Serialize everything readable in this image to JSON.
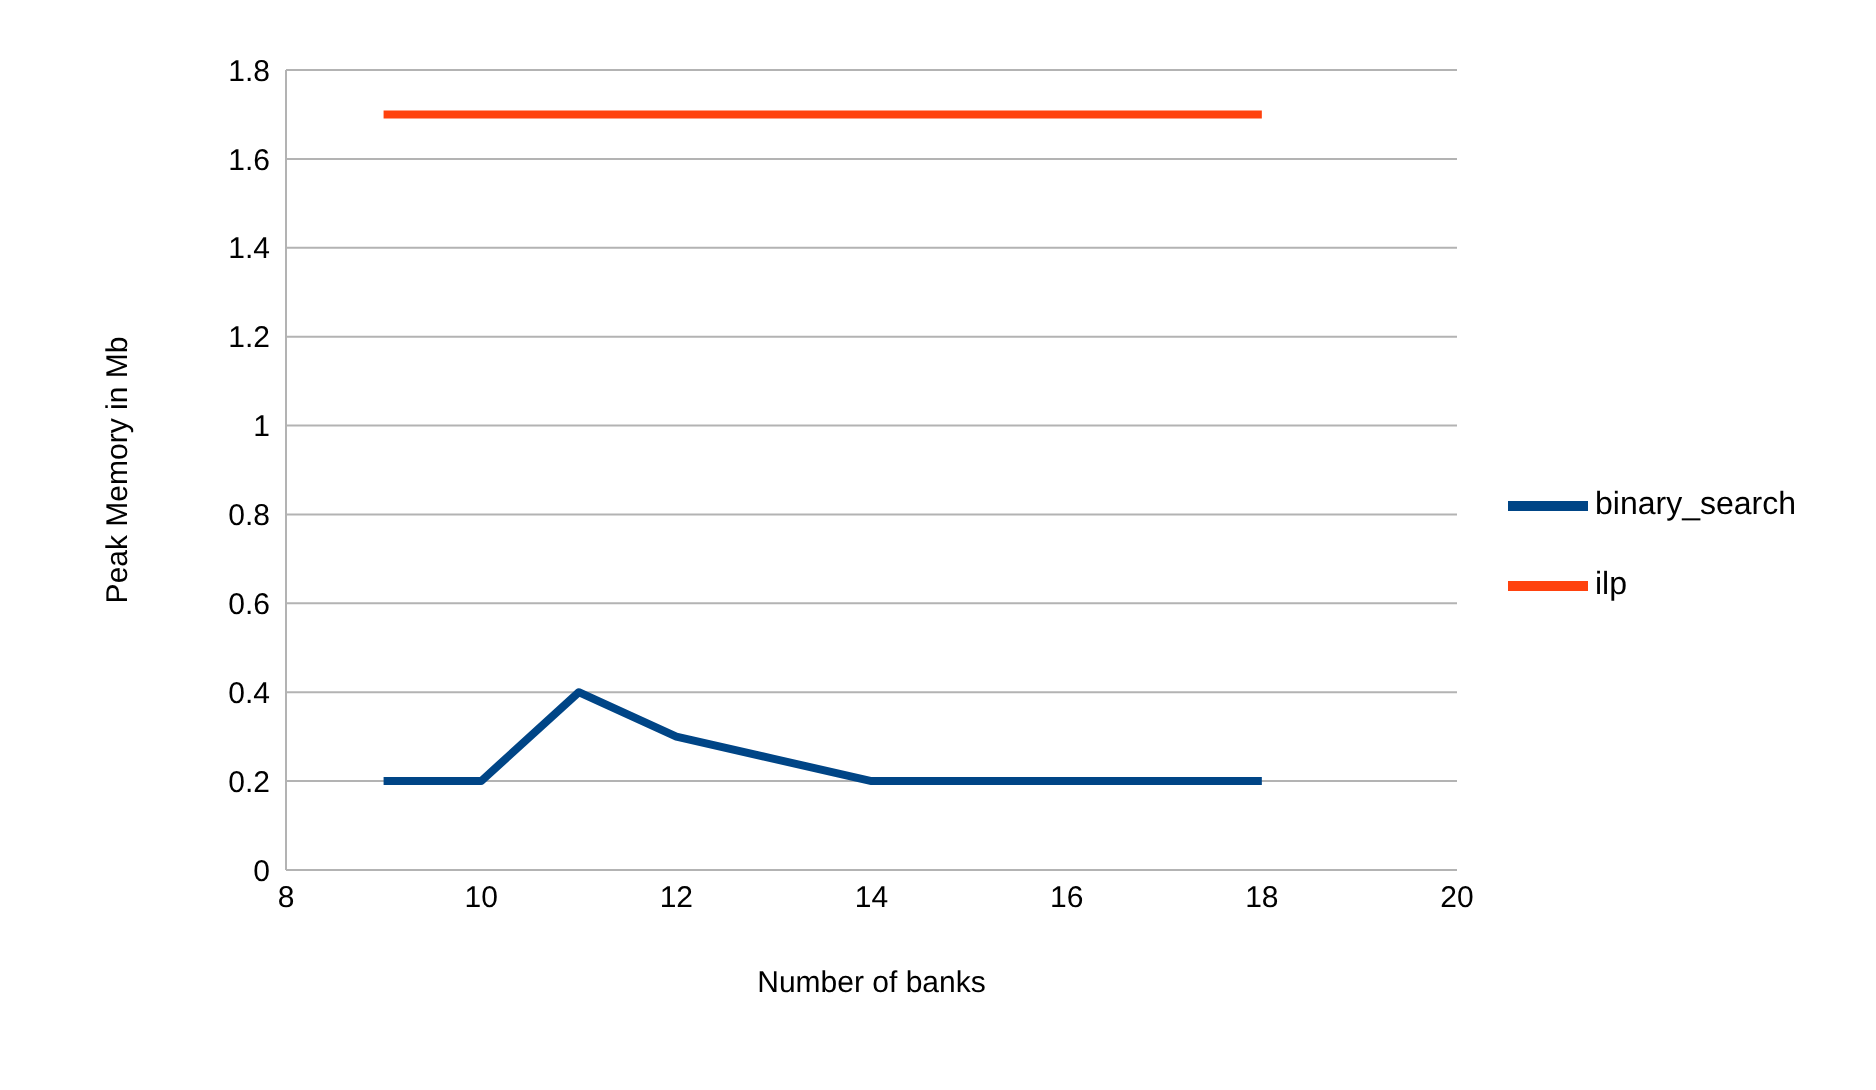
{
  "chart_data": {
    "type": "line",
    "xlabel": "Number of banks",
    "ylabel": "Peak Memory in Mb",
    "x": [
      9,
      10,
      11,
      12,
      13,
      14,
      15,
      16,
      17,
      18
    ],
    "series": [
      {
        "name": "binary_search",
        "color": "#004586",
        "values": [
          0.2,
          0.2,
          0.4,
          0.3,
          0.25,
          0.2,
          0.2,
          0.2,
          0.2,
          0.2
        ]
      },
      {
        "name": "ilp",
        "color": "#ff420e",
        "values": [
          1.7,
          1.7,
          1.7,
          1.7,
          1.7,
          1.7,
          1.7,
          1.7,
          1.7,
          1.7
        ]
      }
    ],
    "xlim": [
      8,
      20
    ],
    "xticks": [
      8,
      10,
      12,
      14,
      16,
      18,
      20
    ],
    "ylim": [
      0,
      1.8
    ],
    "yticks": [
      0,
      0.2,
      0.4,
      0.6,
      0.8,
      1,
      1.2,
      1.4,
      1.6,
      1.8
    ],
    "grid": "y",
    "legend": "right",
    "marker": "none",
    "line_style": "solid"
  }
}
